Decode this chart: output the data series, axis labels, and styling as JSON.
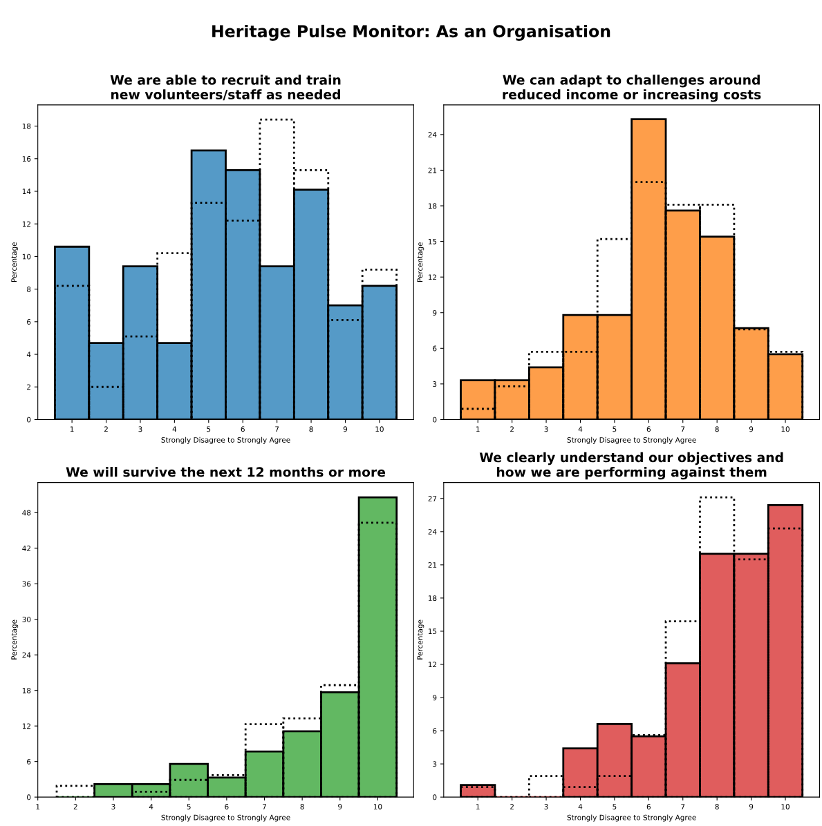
{
  "chart_data": [
    {
      "type": "bar",
      "title": "We are able to recruit and train\nnew volunteers/staff as needed",
      "xlabel": "Strongly Disagree to Strongly Agree",
      "ylabel": "Percentage",
      "annotations": [
        "Heritage Pulse Monitor: As an Organisation"
      ],
      "x": [
        1,
        2,
        3,
        4,
        5,
        6,
        7,
        8,
        9,
        10
      ],
      "series": [
        {
          "color": "#559ac7",
          "values": [
            10.6,
            4.7,
            9.4,
            4.7,
            16.5,
            15.3,
            9.4,
            14.1,
            7.0,
            8.2
          ]
        },
        {
          "color": "#000000",
          "line_style": "dotted",
          "values": [
            8.2,
            2.0,
            5.1,
            10.2,
            13.3,
            12.2,
            18.4,
            15.3,
            6.1,
            9.2
          ]
        }
      ],
      "xlim": [
        0,
        11
      ],
      "xticks": [
        1,
        2,
        3,
        4,
        5,
        6,
        7,
        8,
        9,
        10
      ],
      "ylim": [
        0,
        19.3
      ],
      "yticks": [
        0,
        2,
        4,
        6,
        8,
        10,
        12,
        14,
        16,
        18
      ],
      "grid": false,
      "legend": false
    },
    {
      "type": "bar",
      "title": "We can adapt to challenges around\nreduced income or increasing costs",
      "xlabel": "Strongly Disagree to Strongly Agree",
      "ylabel": "Percentage",
      "x": [
        1,
        2,
        3,
        4,
        5,
        6,
        7,
        8,
        9,
        10
      ],
      "series": [
        {
          "color": "#fe9e4a",
          "values": [
            3.3,
            3.3,
            4.4,
            8.8,
            8.8,
            25.3,
            17.6,
            15.4,
            7.7,
            5.5
          ]
        },
        {
          "color": "#000000",
          "line_style": "dotted",
          "values": [
            0.9,
            2.8,
            5.7,
            5.7,
            15.2,
            20.0,
            18.1,
            18.1,
            7.6,
            5.7
          ]
        }
      ],
      "xlim": [
        0,
        11
      ],
      "xticks": [
        1,
        2,
        3,
        4,
        5,
        6,
        7,
        8,
        9,
        10
      ],
      "ylim": [
        0,
        26.5
      ],
      "yticks": [
        0,
        3,
        6,
        9,
        12,
        15,
        18,
        21,
        24
      ],
      "grid": false,
      "legend": false
    },
    {
      "type": "bar",
      "title": "We will survive the next 12 months or more",
      "xlabel": "Strongly Disagree to Strongly Agree",
      "ylabel": "Percentage",
      "x": [
        2,
        3,
        4,
        5,
        6,
        7,
        8,
        9,
        10
      ],
      "series": [
        {
          "color": "#62b862",
          "values": [
            0,
            2.2,
            2.2,
            5.6,
            3.3,
            7.7,
            11.1,
            17.7,
            50.6
          ]
        },
        {
          "color": "#000000",
          "line_style": "dotted",
          "values": [
            1.9,
            null,
            0.9,
            2.9,
            3.7,
            12.3,
            13.3,
            18.9,
            46.3
          ]
        }
      ],
      "xlim": [
        1,
        10.95
      ],
      "xticks": [
        1,
        2,
        3,
        4,
        5,
        6,
        7,
        8,
        9,
        10
      ],
      "ylim": [
        0,
        53.1
      ],
      "yticks": [
        0,
        6,
        12,
        18,
        24,
        30,
        36,
        42,
        48
      ],
      "grid": false,
      "legend": false
    },
    {
      "type": "bar",
      "title": "We clearly understand our objectives and\nhow we are performing against them",
      "xlabel": "Strongly Disagree to Strongly Agree",
      "ylabel": "Percentage",
      "x": [
        1,
        2,
        3,
        4,
        5,
        6,
        7,
        8,
        9,
        10
      ],
      "series": [
        {
          "color": "#e05d5d",
          "values": [
            1.1,
            0,
            0,
            4.4,
            6.6,
            5.5,
            12.1,
            22.0,
            22.0,
            26.4
          ]
        },
        {
          "color": "#000000",
          "line_style": "dotted",
          "values": [
            0.9,
            0,
            1.9,
            0.9,
            1.9,
            5.6,
            15.9,
            27.1,
            21.5,
            24.3
          ]
        }
      ],
      "xlim": [
        0,
        11
      ],
      "xticks": [
        1,
        2,
        3,
        4,
        5,
        6,
        7,
        8,
        9,
        10
      ],
      "ylim": [
        0,
        28.45
      ],
      "yticks": [
        0,
        3,
        6,
        9,
        12,
        15,
        18,
        21,
        24,
        27
      ],
      "grid": false,
      "legend": false
    }
  ]
}
